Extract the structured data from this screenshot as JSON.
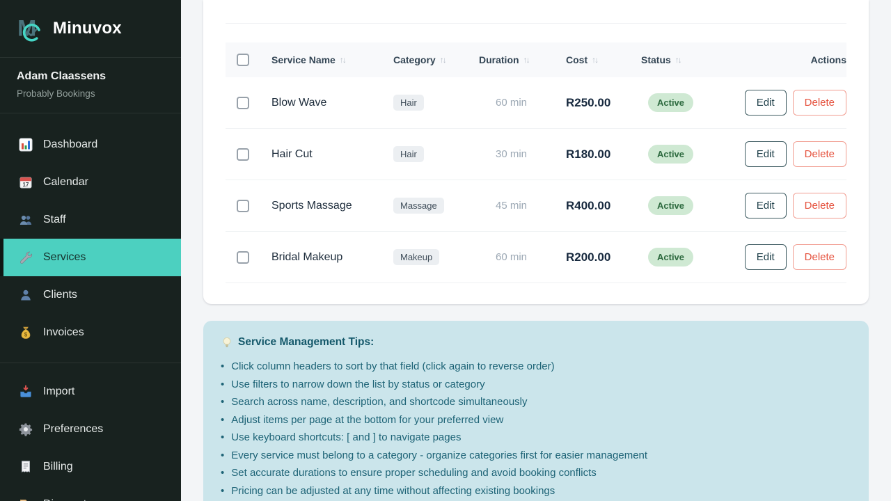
{
  "brand": {
    "name": "Minuvox"
  },
  "user": {
    "name": "Adam Claassens",
    "company": "Probably Bookings"
  },
  "sidebar": {
    "main_items": [
      {
        "id": "dashboard",
        "icon": "dashboard-icon",
        "label": "Dashboard",
        "active": false
      },
      {
        "id": "calendar",
        "icon": "calendar-icon",
        "label": "Calendar",
        "active": false
      },
      {
        "id": "staff",
        "icon": "staff-icon",
        "label": "Staff",
        "active": false
      },
      {
        "id": "services",
        "icon": "wrench-icon",
        "label": "Services",
        "active": true
      },
      {
        "id": "clients",
        "icon": "client-icon",
        "label": "Clients",
        "active": false
      },
      {
        "id": "invoices",
        "icon": "moneybag-icon",
        "label": "Invoices",
        "active": false
      }
    ],
    "secondary_items": [
      {
        "id": "import",
        "icon": "import-icon",
        "label": "Import",
        "active": false
      },
      {
        "id": "preferences",
        "icon": "gear-icon",
        "label": "Preferences",
        "active": false
      },
      {
        "id": "billing",
        "icon": "receipt-icon",
        "label": "Billing",
        "active": false
      },
      {
        "id": "discounts",
        "icon": "tag-icon",
        "label": "Discounts",
        "active": false
      }
    ]
  },
  "table": {
    "sort_indicator": "↑↓",
    "columns": [
      {
        "label": "Service Name",
        "sortable": true
      },
      {
        "label": "Category",
        "sortable": true
      },
      {
        "label": "Duration",
        "sortable": true
      },
      {
        "label": "Cost",
        "sortable": true
      },
      {
        "label": "Status",
        "sortable": true
      },
      {
        "label": "Actions",
        "sortable": false
      }
    ],
    "actions": {
      "edit": "Edit",
      "delete": "Delete"
    },
    "rows": [
      {
        "name": "Blow Wave",
        "category": "Hair",
        "duration": "60 min",
        "cost": "R250.00",
        "status": "Active"
      },
      {
        "name": "Hair Cut",
        "category": "Hair",
        "duration": "30 min",
        "cost": "R180.00",
        "status": "Active"
      },
      {
        "name": "Sports Massage",
        "category": "Massage",
        "duration": "45 min",
        "cost": "R400.00",
        "status": "Active"
      },
      {
        "name": "Bridal Makeup",
        "category": "Makeup",
        "duration": "60 min",
        "cost": "R200.00",
        "status": "Active"
      }
    ]
  },
  "tips": {
    "icon": "lightbulb-icon",
    "title": "Service Management Tips:",
    "items": [
      "Click column headers to sort by that field (click again to reverse order)",
      "Use filters to narrow down the list by status or category",
      "Search across name, description, and shortcode simultaneously",
      "Adjust items per page at the bottom for your preferred view",
      "Use keyboard shortcuts: [ and ] to navigate pages",
      "Every service must belong to a category - organize categories first for easier management",
      "Set accurate durations to ensure proper scheduling and avoid booking conflicts",
      "Pricing can be adjusted at any time without affecting existing bookings"
    ]
  },
  "colors": {
    "sidebar_bg": "#18221f",
    "accent_teal": "#4cd0c0",
    "active_badge_bg": "#cfe9d3",
    "active_badge_text": "#2d6a3f",
    "delete_red": "#e5503c",
    "tips_bg": "#cbe5eb",
    "tips_text": "#1d6376"
  }
}
